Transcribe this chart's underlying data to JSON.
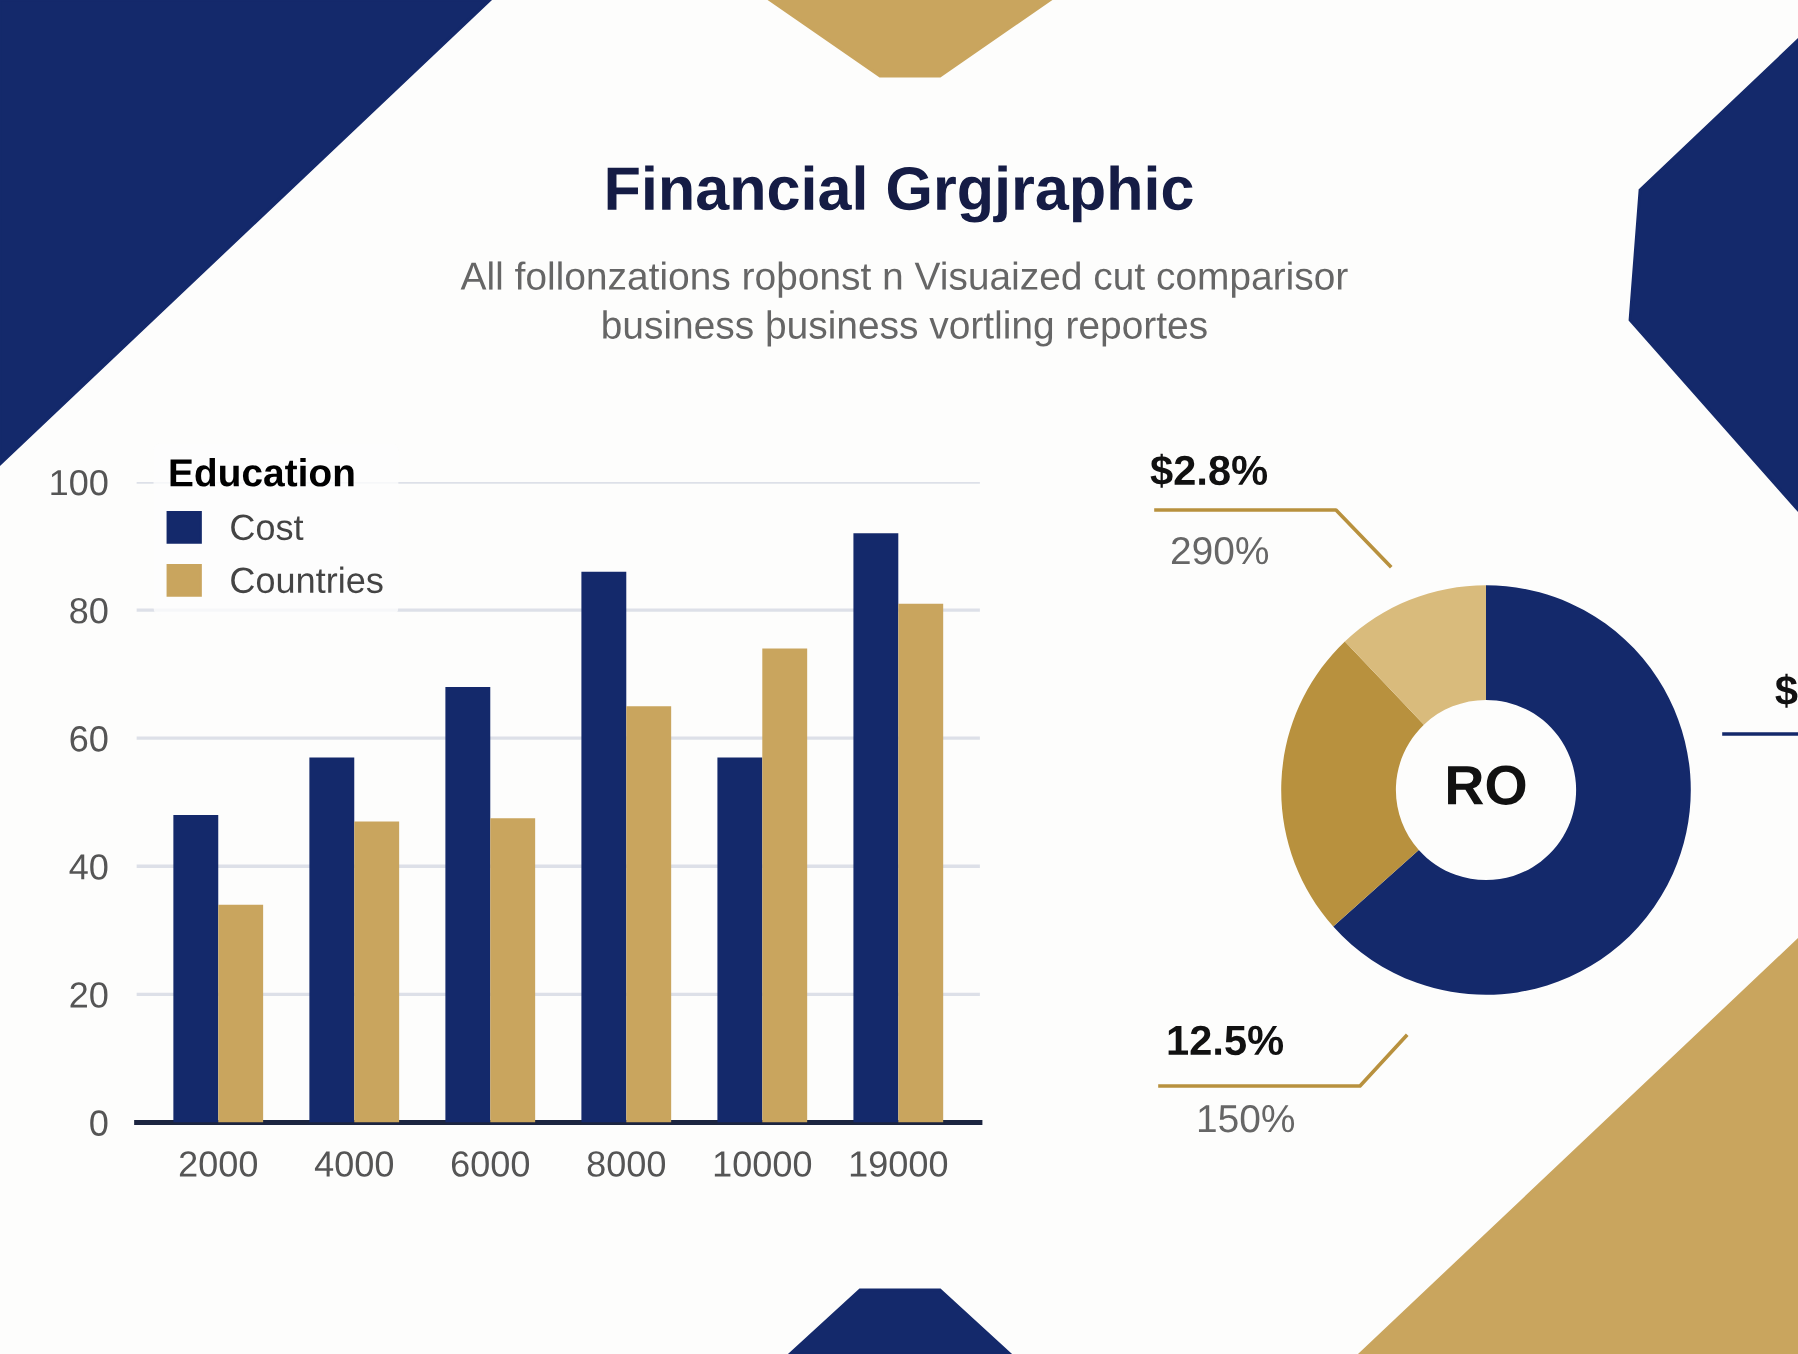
{
  "chart_data": [
    {
      "type": "bar",
      "title": "Financial Grgjraphic",
      "subtitle": "All follonzations roþonst n Visuaized cut comparisor\nbusiness þusiness vortling reportes",
      "categories": [
        "2000",
        "4000",
        "6000",
        "8000",
        "10000",
        "19000"
      ],
      "series": [
        {
          "name": "Cost",
          "color": "#14296b",
          "values": [
            48,
            57,
            68,
            86,
            57,
            92
          ]
        },
        {
          "name": "Countries",
          "color": "#c9a55e",
          "values": [
            34,
            47,
            47.5,
            65,
            74,
            81
          ]
        }
      ],
      "ylim": [
        0,
        100
      ],
      "yticks": [
        0,
        20,
        40,
        60,
        80,
        100
      ],
      "grid": "y",
      "legend": "top left",
      "legend_title": "Education"
    },
    {
      "type": "donut",
      "categories": [
        null,
        null,
        null
      ],
      "values": [
        63.4,
        24.5,
        12.1
      ],
      "colors": [
        "#14296b",
        "#b8913e",
        "#d9bb7c"
      ],
      "annotations": [
        "RO",
        "$2.8%",
        "290%",
        "12.5%",
        "150%",
        "$"
      ]
    }
  ]
}
